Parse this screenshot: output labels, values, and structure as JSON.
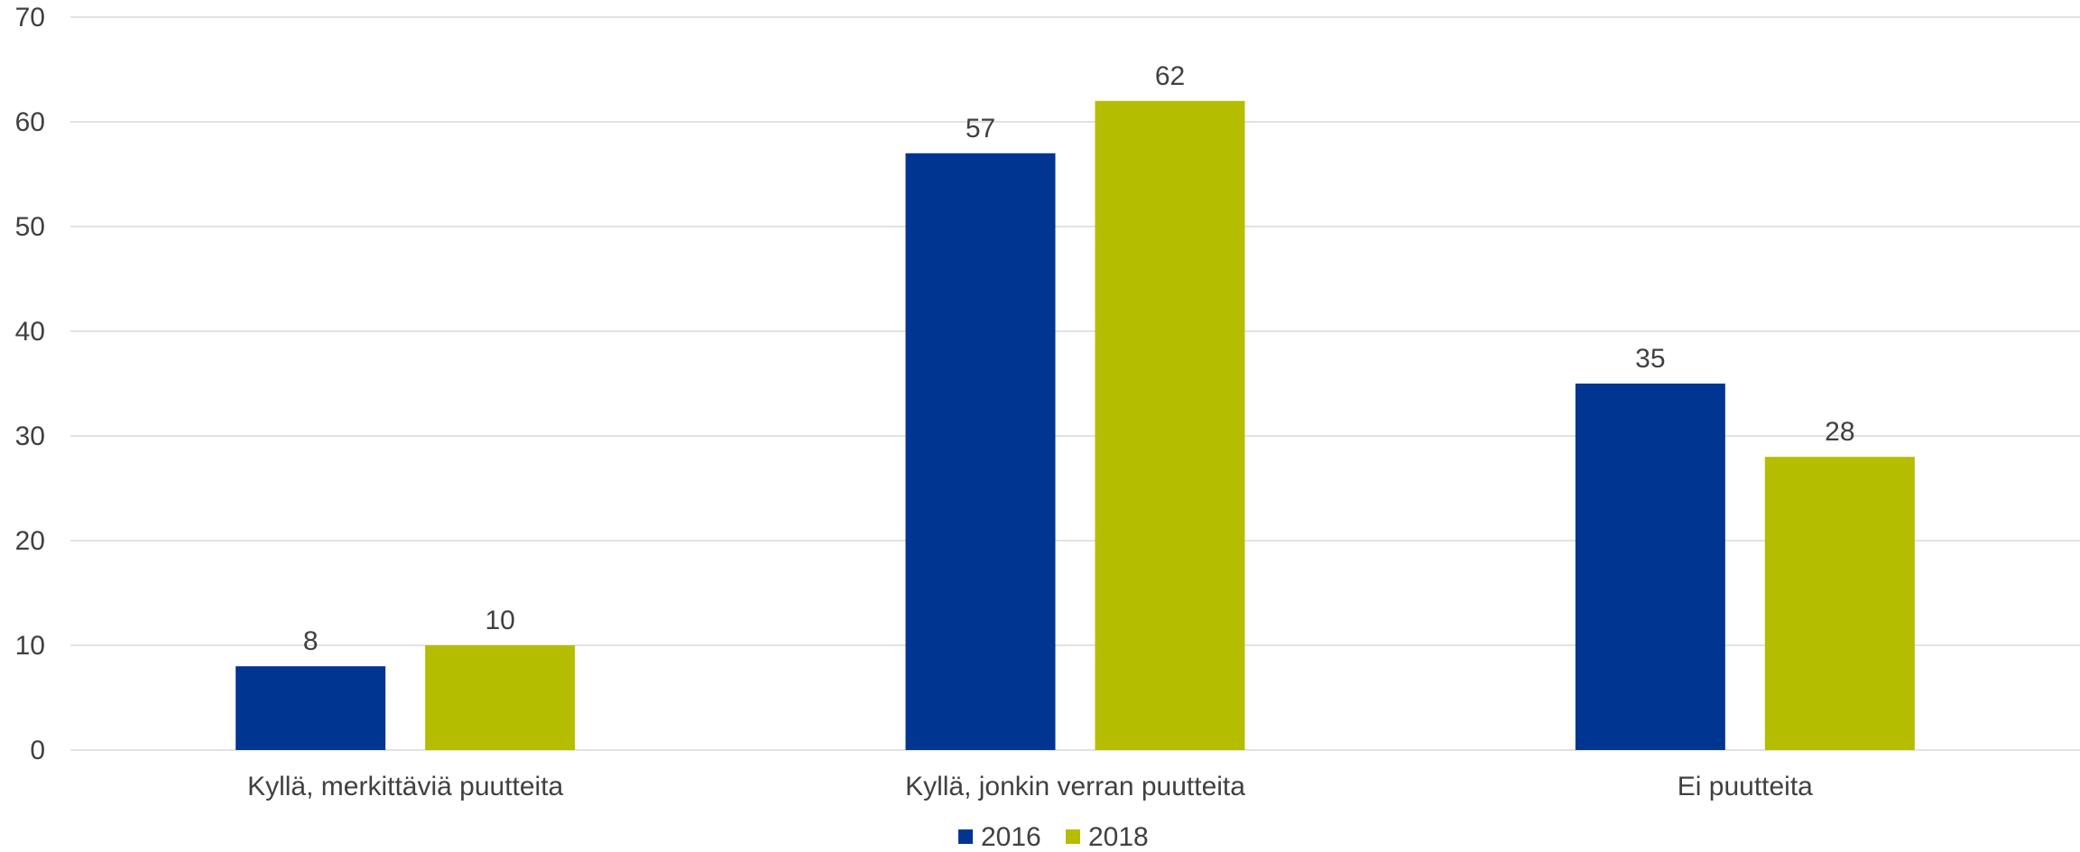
{
  "chart_data": {
    "type": "bar",
    "categories": [
      "Kyllä, merkittäviä puutteita",
      "Kyllä, jonkin verran puutteita",
      "Ei puutteita"
    ],
    "series": [
      {
        "name": "2016",
        "values": [
          8,
          57,
          35
        ],
        "color": "#003591"
      },
      {
        "name": "2018",
        "values": [
          10,
          62,
          28
        ],
        "color": "#b5bd00"
      }
    ],
    "ylim": [
      0,
      70
    ],
    "yticks": [
      0,
      10,
      20,
      30,
      40,
      50,
      60,
      70
    ],
    "grid": true,
    "legend": "bottom",
    "title": "",
    "xlabel": "",
    "ylabel": ""
  }
}
